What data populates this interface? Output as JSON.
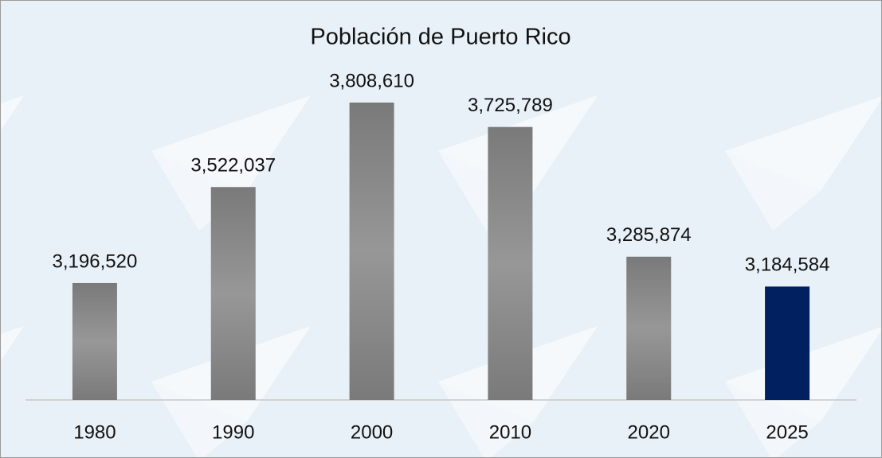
{
  "chart_data": {
    "type": "bar",
    "title": "Población de Puerto Rico",
    "categories": [
      "1980",
      "1990",
      "2000",
      "2010",
      "2020",
      "2025"
    ],
    "values": [
      3196520,
      3522037,
      3808610,
      3725789,
      3285874,
      3184584
    ],
    "value_labels": [
      "3,196,520",
      "3,522,037",
      "3,808,610",
      "3,725,789",
      "3,285,874",
      "3,184,584"
    ],
    "colors": [
      "#7a7a7a",
      "#7a7a7a",
      "#7a7a7a",
      "#7a7a7a",
      "#7a7a7a",
      "#002060"
    ],
    "ylim": [
      2800000,
      4000000
    ]
  }
}
